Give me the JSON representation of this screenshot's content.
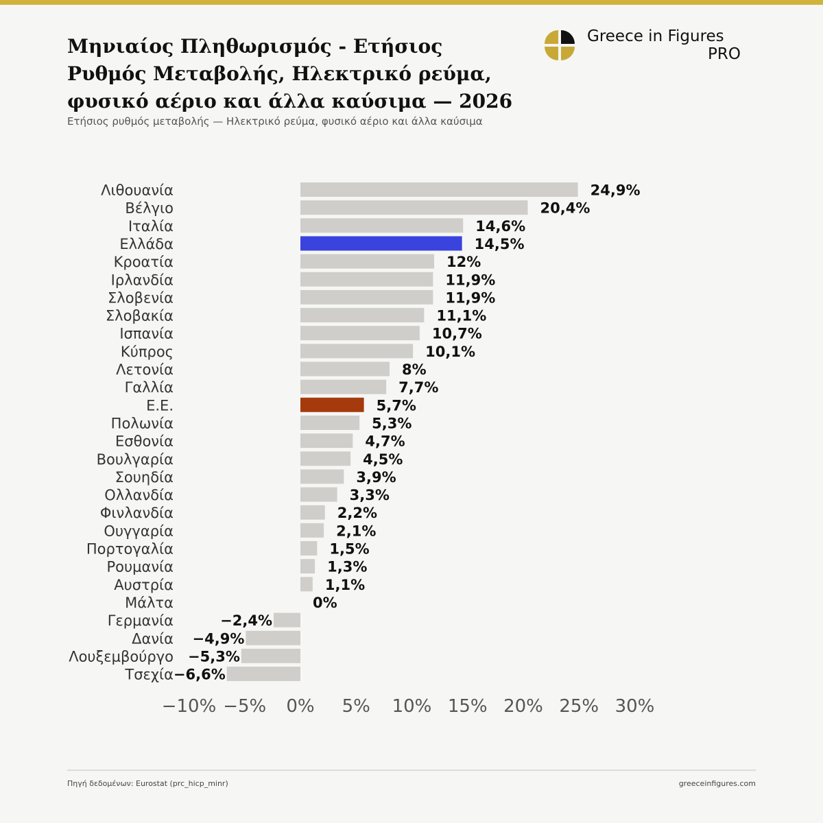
{
  "header": {
    "title": "Μηνιαίος Πληθωρισμός - Ετήσιος Ρυθμός Μεταβολής, Ηλεκτρικό ρεύμα, φυσικό αέριο και άλλα καύσιμα — 2026",
    "subtitle": "Ετήσιος ρυθμός μεταβολής — Ηλεκτρικό ρεύμα, φυσικό αέριο και άλλα καύσιμα"
  },
  "brand": {
    "name": "Greece in Figures",
    "tier": "PRO",
    "icon": "greece-in-figures-logo",
    "color": "#c8a937"
  },
  "footer": {
    "source": "Πηγή δεδομένων: Eurostat (prc_hicp_minr)",
    "site": "greeceinfigures.com"
  },
  "colors": {
    "default_bar": "#cfcecb",
    "highlight_greece": "#3a43de",
    "highlight_eu": "#a53a0d"
  },
  "chart_data": {
    "type": "bar",
    "orientation": "horizontal",
    "categories": [
      "Λιθουανία",
      "Βέλγιο",
      "Ιταλία",
      "Ελλάδα",
      "Κροατία",
      "Ιρλανδία",
      "Σλοβενία",
      "Σλοβακία",
      "Ισπανία",
      "Κύπρος",
      "Λετονία",
      "Γαλλία",
      "Ε.Ε.",
      "Πολωνία",
      "Εσθονία",
      "Βουλγαρία",
      "Σουηδία",
      "Ολλανδία",
      "Φινλανδία",
      "Ουγγαρία",
      "Πορτογαλία",
      "Ρουμανία",
      "Αυστρία",
      "Μάλτα",
      "Γερμανία",
      "Δανία",
      "Λουξεμβούργο",
      "Τσεχία"
    ],
    "values": [
      24.9,
      20.4,
      14.6,
      14.5,
      12,
      11.9,
      11.9,
      11.1,
      10.7,
      10.1,
      8,
      7.7,
      5.7,
      5.3,
      4.7,
      4.5,
      3.9,
      3.3,
      2.2,
      2.1,
      1.5,
      1.3,
      1.1,
      0,
      -2.4,
      -4.9,
      -5.3,
      -6.6
    ],
    "value_labels": [
      "24,9%",
      "20,4%",
      "14,6%",
      "14,5%",
      "12%",
      "11,9%",
      "11,9%",
      "11,1%",
      "10,7%",
      "10,1%",
      "8%",
      "7,7%",
      "5,7%",
      "5,3%",
      "4,7%",
      "4,5%",
      "3,9%",
      "3,3%",
      "2,2%",
      "2,1%",
      "1,5%",
      "1,3%",
      "1,1%",
      "0%",
      "−2,4%",
      "−4,9%",
      "−5,3%",
      "−6,6%"
    ],
    "highlight": {
      "Ελλάδα": "#3a43de",
      "Ε.Ε.": "#a53a0d"
    },
    "xlim": [
      -10,
      30
    ],
    "xticks": [
      -10,
      -5,
      0,
      5,
      10,
      15,
      20,
      25,
      30
    ],
    "xtick_labels": [
      "−10%",
      "−5%",
      "0%",
      "5%",
      "10%",
      "15%",
      "20%",
      "25%",
      "30%"
    ],
    "grid": false,
    "legend": "none"
  }
}
